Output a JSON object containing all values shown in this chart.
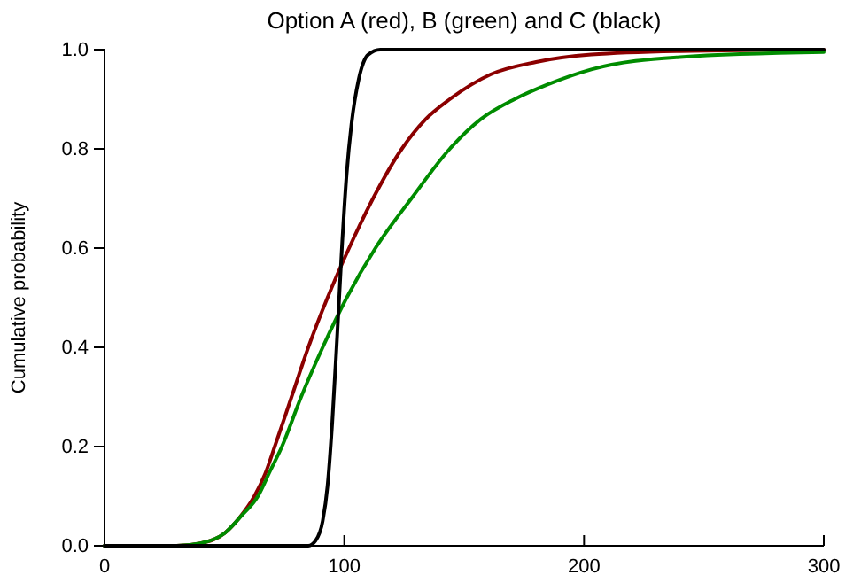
{
  "chart_data": {
    "type": "line",
    "title": "Option A (red), B (green) and C (black)",
    "ylabel": "Cumulative probability",
    "xlim": [
      0,
      300
    ],
    "xticks": [
      0,
      100,
      200,
      300
    ],
    "ylim": [
      0,
      1
    ],
    "yticks": [
      {
        "value": 0,
        "label": "0.0"
      },
      {
        "value": 0.2,
        "label": "0.2"
      },
      {
        "value": 0.4,
        "label": "0.4"
      },
      {
        "value": 0.6,
        "label": "0.6"
      },
      {
        "value": 0.8,
        "label": "0.8"
      },
      {
        "value": 1,
        "label": "1.0"
      }
    ],
    "grid": false,
    "line_style": "solid",
    "marker": "none",
    "series": [
      {
        "color": "#8b0000",
        "x": [
          0,
          30,
          40,
          50,
          56,
          62.5,
          67,
          71,
          78,
          85,
          93,
          102,
          112,
          124,
          134,
          144,
          161,
          180,
          203,
          240,
          300
        ],
        "values": [
          0,
          0,
          0.005,
          0.025,
          0.055,
          0.1,
          0.145,
          0.2,
          0.3,
          0.4,
          0.5,
          0.6,
          0.7,
          0.8,
          0.86,
          0.9,
          0.95,
          0.975,
          0.99,
          0.997,
          1
        ]
      },
      {
        "color": "#008c00",
        "x": [
          0,
          30,
          40,
          50,
          57,
          64,
          69,
          74,
          82,
          91,
          101,
          113,
          128,
          144,
          157,
          171,
          185,
          203,
          240,
          300
        ],
        "values": [
          0,
          0,
          0.005,
          0.025,
          0.06,
          0.1,
          0.15,
          0.2,
          0.3,
          0.4,
          0.5,
          0.6,
          0.7,
          0.8,
          0.86,
          0.9,
          0.93,
          0.96,
          0.985,
          0.995
        ]
      },
      {
        "color": "#000000",
        "x": [
          0,
          85,
          88,
          91,
          93,
          95,
          97,
          99,
          101,
          103,
          106,
          110,
          115,
          300
        ],
        "values": [
          0,
          0,
          0.01,
          0.05,
          0.12,
          0.25,
          0.42,
          0.6,
          0.75,
          0.85,
          0.94,
          0.99,
          1,
          1
        ]
      }
    ]
  }
}
